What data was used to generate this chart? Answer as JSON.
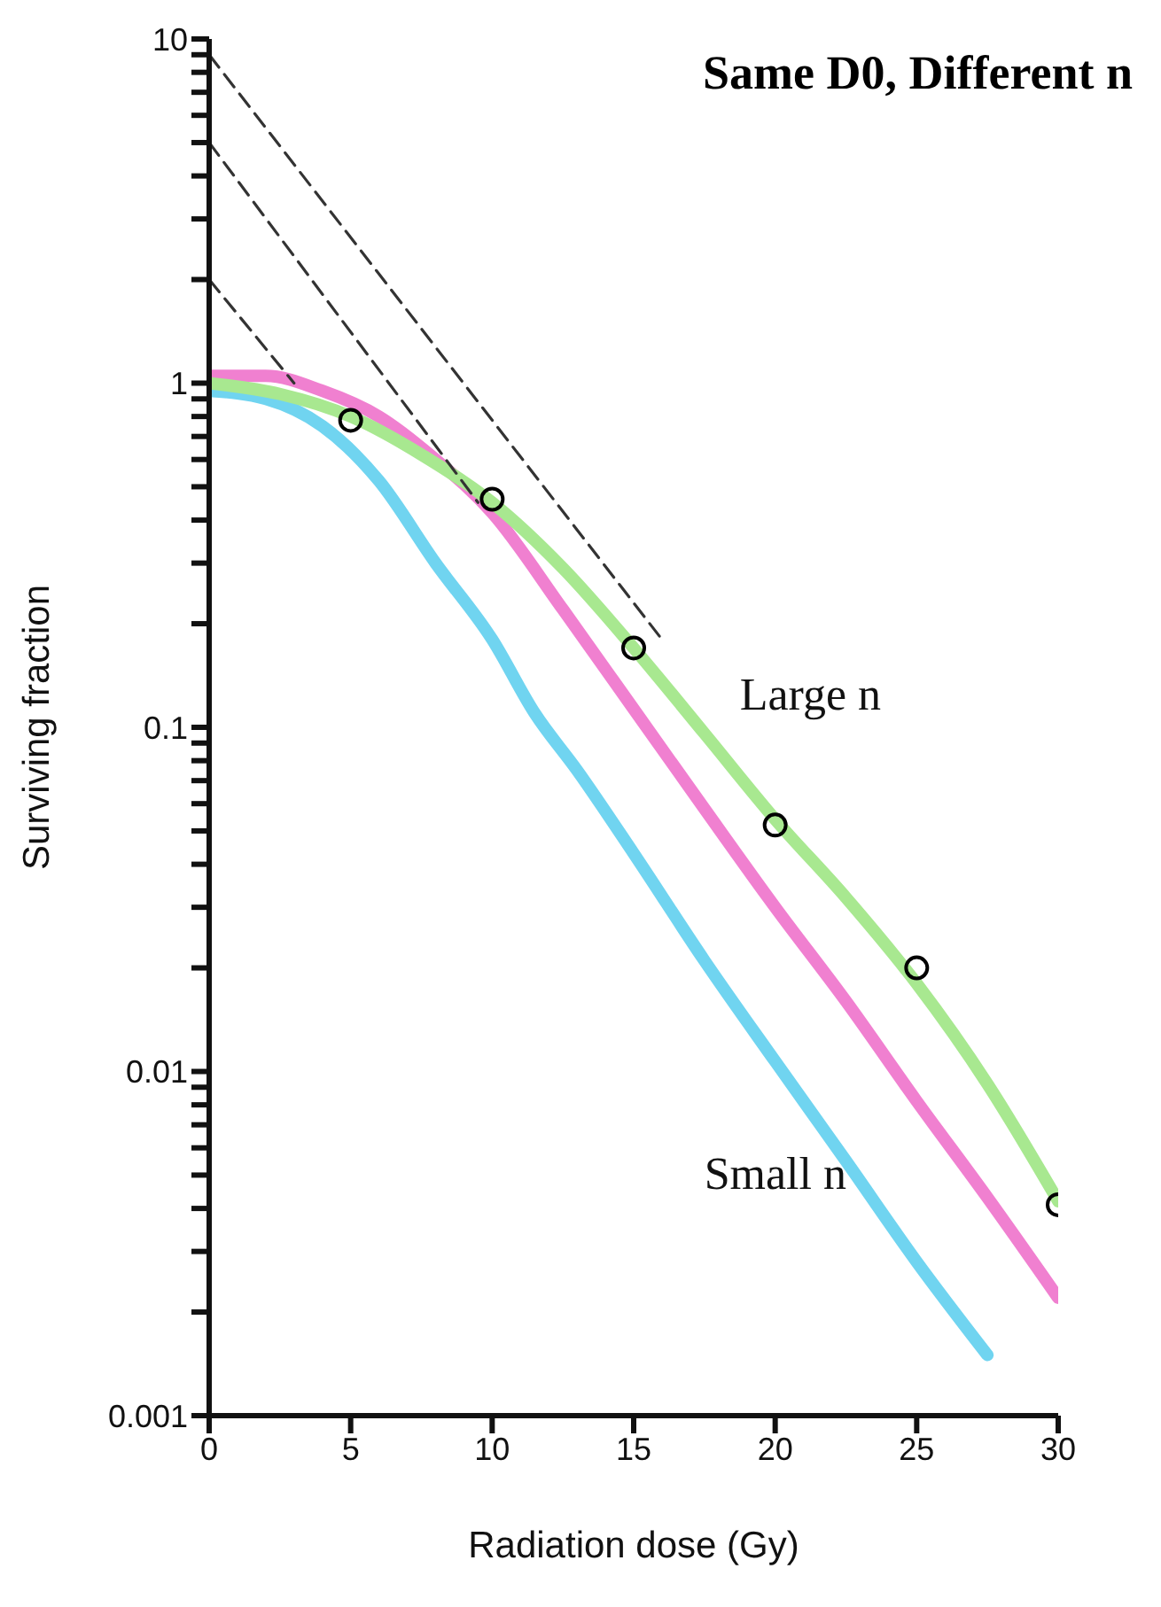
{
  "chart_data": {
    "type": "line",
    "title": "Same D0, Different n",
    "xlabel": "Radiation dose (Gy)",
    "ylabel": "Surviving fraction",
    "log": "y",
    "xlim": [
      0,
      30
    ],
    "xticks": [
      0,
      5,
      10,
      15,
      20,
      25,
      30
    ],
    "ylim": [
      0.001,
      10
    ],
    "yticks": [
      0.001,
      {
        "value": 0.002,
        "label": null
      },
      {
        "value": 0.003,
        "label": null
      },
      {
        "value": 0.004,
        "label": null
      },
      {
        "value": 0.005,
        "label": null
      },
      {
        "value": 0.006,
        "label": null
      },
      {
        "value": 0.007,
        "label": null
      },
      {
        "value": 0.008,
        "label": null
      },
      {
        "value": 0.009,
        "label": null
      },
      0.01,
      {
        "value": 0.02,
        "label": null
      },
      {
        "value": 0.03,
        "label": null
      },
      {
        "value": 0.04,
        "label": null
      },
      {
        "value": 0.05,
        "label": null
      },
      {
        "value": 0.06,
        "label": null
      },
      {
        "value": 0.07,
        "label": null
      },
      {
        "value": 0.08,
        "label": null
      },
      {
        "value": 0.09,
        "label": null
      },
      0.1,
      {
        "value": 0.2,
        "label": null
      },
      {
        "value": 0.3,
        "label": null
      },
      {
        "value": 0.4,
        "label": null
      },
      {
        "value": 0.5,
        "label": null
      },
      {
        "value": 0.6,
        "label": null
      },
      {
        "value": 0.7,
        "label": null
      },
      {
        "value": 0.8,
        "label": null
      },
      {
        "value": 0.9,
        "label": null
      },
      1,
      {
        "value": 2,
        "label": null
      },
      {
        "value": 3,
        "label": null
      },
      {
        "value": 4,
        "label": null
      },
      {
        "value": 5,
        "label": null
      },
      {
        "value": 6,
        "label": null
      },
      {
        "value": 7,
        "label": null
      },
      {
        "value": 8,
        "label": null
      },
      {
        "value": 9,
        "label": null
      },
      10
    ],
    "grid": false,
    "legend": false,
    "series": [
      {
        "name": "Small n",
        "color": "#70d4f0",
        "x": [
          0,
          2,
          4,
          6,
          8,
          10,
          11.5,
          13,
          15,
          17.5,
          20,
          22.5,
          25,
          27.5
        ],
        "values": [
          0.95,
          0.9,
          0.75,
          0.52,
          0.3,
          0.18,
          0.11,
          0.075,
          0.043,
          0.021,
          0.0107,
          0.0055,
          0.0028,
          0.0015
        ]
      },
      {
        "color": "#f080d0",
        "x": [
          0,
          2,
          4,
          6,
          8,
          10,
          12.5,
          15,
          17.5,
          20,
          22.5,
          25,
          27.5,
          30
        ],
        "values": [
          1.05,
          1.05,
          0.95,
          0.8,
          0.6,
          0.42,
          0.22,
          0.113,
          0.058,
          0.03,
          0.016,
          0.0082,
          0.0043,
          0.0022
        ]
      },
      {
        "name": "Large n",
        "color": "#a8e890",
        "x": [
          0,
          2.5,
          5,
          7.5,
          10,
          12.5,
          15,
          17.5,
          20,
          22.5,
          25,
          27.5,
          30
        ],
        "values": [
          1.0,
          0.93,
          0.8,
          0.62,
          0.45,
          0.29,
          0.17,
          0.096,
          0.054,
          0.032,
          0.018,
          0.0092,
          0.0042
        ]
      },
      {
        "type": "scatter",
        "color": "#000000",
        "marker": "circle",
        "x": [
          5,
          10,
          15,
          20,
          25,
          30
        ],
        "values": [
          0.78,
          0.46,
          0.17,
          0.052,
          0.02,
          0.0041
        ]
      },
      {
        "color": "#333333",
        "line_style": "dashed",
        "x": [
          0,
          16
        ],
        "values": [
          9,
          0.18
        ]
      },
      {
        "color": "#333333",
        "line_style": "dashed",
        "x": [
          0,
          9.5
        ],
        "values": [
          5,
          0.45
        ]
      },
      {
        "color": "#333333",
        "line_style": "dashed",
        "x": [
          0,
          3
        ],
        "values": [
          2,
          1
        ]
      }
    ]
  }
}
